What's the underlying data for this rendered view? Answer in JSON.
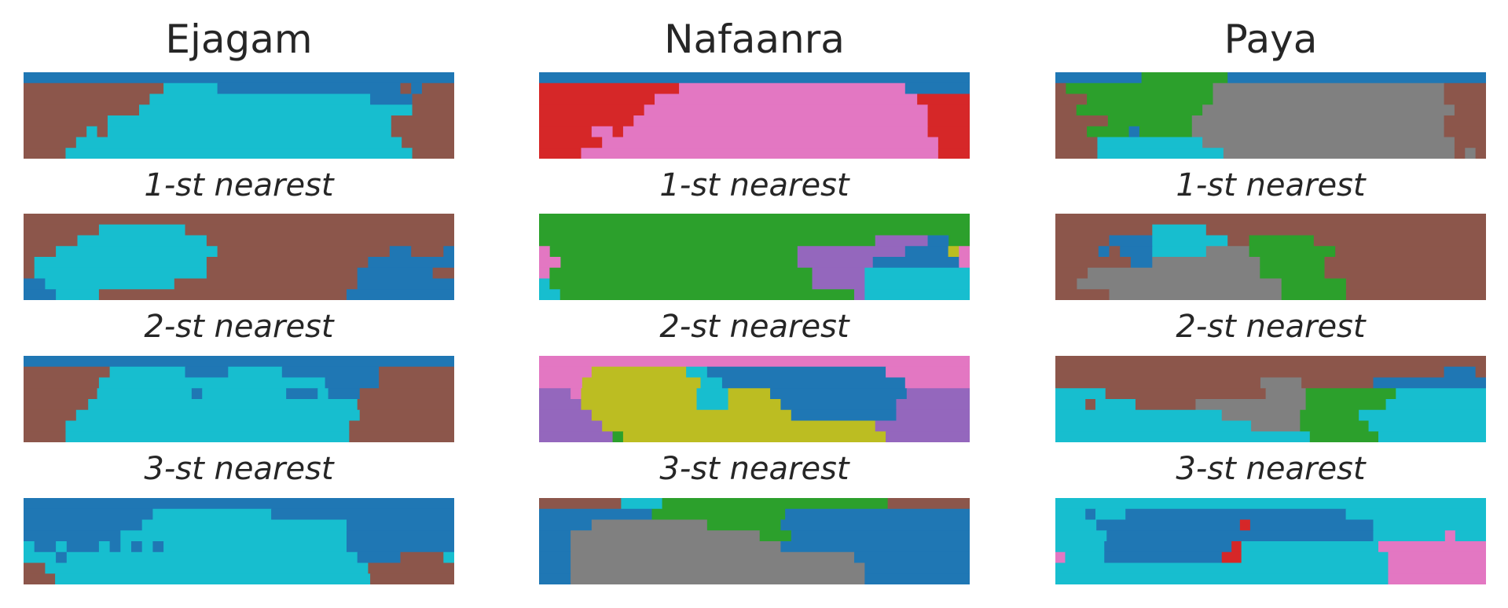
{
  "palette": {
    "b": "#1f77b4",
    "n": "#8c564b",
    "c": "#17becf",
    "r": "#d62728",
    "p": "#e377c2",
    "g": "#2ca02c",
    "y": "#808080",
    "v": "#9467bd",
    "o": "#bcbd22"
  },
  "panels": [
    {
      "title": "Ejagam",
      "labels": [
        "1-st nearest",
        "2-st nearest",
        "3-st nearest"
      ],
      "maps": [
        [
          "bbbbbbbbbbbbbbbbbbbbbbbbbbbbbbbbbbbbbbbb",
          "nnnnnnnnnnnnncccccbbbbbbbbbbbbbbbbbnbnnn",
          "nnnnnnnnnnnncccccccccccccccccccccbbbbnnnn",
          "nnnnnnnnnnnccccccccccccccccccccccccccnnnn",
          "nnnnnnnncccccccccccccccccccccccccccnnnnnn",
          "nnnnnncncccccccccccccccccccccccccccnnnnnn",
          "nnnnncccccccccccccccccccccccccccccccnnnnn",
          "nnnncccccccccccccccccccccccccccccccccnnnn"
        ],
        [
          "nnnnnnnnnnnnnnnnnnnnnnnnnnnnnnnnnnnnnnnn",
          "nnnnnnnccccccccnnnnnnnnnnnnnnnnnnnnnnnnn",
          "nnnnnccccccccccccnnnnnnnnnnnnnnnnnnnnnnn",
          "nnncccccccccccccccnnnnnnnnnnnnnnnnbbnnnb",
          "nccccccccccccccccnnnnnnnnnnnnnnnbbbbbbbb",
          "nccccccccccccccccnnnnnnnnnnnnnnbbbbbbbnn",
          "bbccccccccccccnnnnnnnnnnnnnnnnnbbbbbbbbb",
          "bbbccccnnnnnnnnnnnnnnnnnnnnnnnbbbbbbbbbb"
        ],
        [
          "bbbbbbbbbbbbbbbbbbbbbbbbbbbbbbbbbbbbbbbb",
          "nnnnnnnncccccccbbbbcccccbbbbbbbbbnnnnnnn",
          "nnnnnnncccccccccccccccccccccbbbbbnnnnnnn",
          "nnnnnnncccccccccbccccccccbbbcbbbnnnnnnnnn",
          "nnnnnncccccccccccccccccccccccccnnnnnnnnn",
          "nnnnncccccccccccccccccccccccccccnnnnnnnnn",
          "nnnncccccccccccccccccccccccccccnnnnnnnnnn",
          "nnnncccccccccccccccccccccccccccnnnnnnnnnn"
        ],
        [
          "bbbbbbbbbbbbbbbbbbbbbbbbbbbbbbbbbbbbbbbb",
          "bbbbbbbbbbbbcccccccccccbbbbbbbbbbbbbbbbb",
          "bbbbbbbbbbbcccccccccccccccccccbbbbbbbbbb",
          "bbbbbbbbbcccccccccccccccccccccbbbbbbbbbb",
          "cbbcbbbcbcbcbcccccccccccccccccbbbbbbbbbb",
          "cccbcccccccccccccccccccccccccccbbbbnnnnc",
          "nnccccccccccccccccccccccccccccccnnnnnnnn",
          "nnnccccccccccccccccccccccccccccccnnnnnnnn"
        ]
      ]
    },
    {
      "title": "Nafaanra",
      "labels": [
        "1-st nearest",
        "2-st nearest",
        "3-st nearest"
      ],
      "maps": [
        [
          "bbbbbbbbbbbbbbbbbbbbbbbbbbbbbbbbbbbbbbbb",
          "rrrrrrrrrrrrrpppppppppppppppppppppbbbbbb",
          "rrrrrrrrrrrppppppppppppppppppppppppprrrrr",
          "rrrrrrrrrrppppppppppppppppppppppppppprrrr",
          "rrrrrrrrrpppppppppppppppppppppppppppprrrr",
          "rrrrrpprppppppppppppppppppppppppppppprrrr",
          "rrrrrrpppppppppppppppppppppppppppppppprrr",
          "rrrrpppppppppppppppppppppppppppppppppprrr"
        ],
        [
          "gggggggggggggggggggggggggggggggggggggggg",
          "ggggggggggggggggggggggggggggggggggggggggg",
          "ggggggggggggggggggggggggggggggggvvvvvbbgg",
          "pgggggggggggggggggggggggvvvvvvvvvvbbbbop",
          "ppggggggggggggggggggggggvvvvvvvbbbbbbbbp",
          "pgggggggggggggggggggggggggvvvvvcccccccccc",
          "cgggggggggggggggggggggggggvvvvvcccccccccc",
          "ccggggggggggggggggggggggggggggvcccccccccc"
        ],
        [
          "pppppppppppppppppppppppppppppppppppppppp",
          "pppppoooooooooccbbbbbbbbbbbbbbbbbpppppppp",
          "ppppoooooooooooccbbbbbbbbbbbbbbbbbpppppp",
          "vvvpooooooooooocccoooobbbbbbbbbbbbbvvvvvv",
          "vvvvooooooooooocccooooobbbbbbbbbbbvvvvvvv",
          "vvvvvooooooooooooooooooobbbbbbbbbbvvvvvvv",
          "vvvvvvoooooooooooooooooooooooooovvvvvvvvv",
          "vvvvvvvgooooooooooooooooooooooooovvvvvvvv"
        ],
        [
          "nnnnnnnnccccggggggggggggggggggggggnnnnnnnn",
          "bbbbbbbbbbbgggggggggggggbbbbbbbbbbbbbbbbbb",
          "bbbbbyyyyyyyyyyygggggggbbbbbbbbbbbbbbbbbb",
          "bbbyyyyyyyyyyyyyyyyyygggbbbbbbbbbbbbbbbbb",
          "bbbyyyyyyyyyyyyyyyyyyyybbbbbbbbbbbbbbbbbb",
          "bbbyyyyyyyyyyyyyyyyyyyyyyyyyyybbbbbbbbbbb",
          "bbbyyyyyyyyyyyyyyyyyyyyyyyyyyyybbbbbbbbbb",
          "bbbyyyyyyyyyyyyyyyyyyyyyyyyyyyybbbbbbbbbb"
        ]
      ]
    },
    {
      "title": "Paya",
      "labels": [
        "1-st nearest",
        "2-st nearest",
        "3-st nearest"
      ],
      "maps": [
        [
          "bbbbbbbbggggggggbbbbbbbbbbbbbbbbbbbbbbbb",
          "nggggggggggggggyyyyyyyyyyyyyyyyyyyyyynnnn",
          "nnnggggggggggggyyyyyyyyyyyyyyyyyyyyyynnnn",
          "nnggggggggggggyyyyyyyyyyyyyyyyyyyyyyyynnn",
          "nnnnnggggggggyyyyyyyyyyyyyyyyyyyyyyyynnnn",
          "nnnggggbgggggyyyyyyyyyyyyyyyyyyyyyyyynnnn",
          "nnnnccccccccccyyyyyyyyyyyyyyyyyyyyyyyynnn",
          "nnnnccccccccccccyyyyyyyyyyyyyyyyyyyyyynyn"
        ],
        [
          "nnnnnnnnnnnnnnnnnnnnnnnnnnnnnnnnnnnnnnnn",
          "nnnnnnnnncccccnnnnnnnnnnnnnnnnnnnnnnnnnn",
          "nnnnnbbbbcccccccnnggggggnnnnnnnnnnnnnnnn",
          "nnnnbnbbbcccccyyyyggggggggnnnnnnnnnnnnnn",
          "nnnnnnnbbyyyyyyyyyyggggggnnnnnnnnnnnnnnn",
          "nnnyyyyyyyyyyyyyyyyggggggnnnnnnnnnnnnnnn",
          "nnyyyyyyyyyyyyyyyyyyyggggggnnnnnnnnnnnnn",
          "nnnnnyyyyyyyyyyyyyyyyggggggnnnnnnnnnnnnn"
        ],
        [
          "nnnnnnnnnnnnnnnnnnnnnnnnnnnnnnnnnnnnnnnn",
          "nnnnnnnnnnnnnnnnnnnnnnnnnnnnnnnnnnnnnbbbn",
          "nnnnnnnnnnnnnnnnnnnnyyyynnnnnnnbbbbbbbbbbb",
          "cccccnnnnnnnnnnnnnnnnyyyygggggggggccccccccc",
          "cccnccccnnnnnnyyyyyyyyyyyggggggggcccccccccc",
          "cccccccccccccccccyyyyyyyyggggggccccccccccccc",
          "ccccccccccccccccccccyyyyygggggggcccccccccccc",
          "ccccccccccccccccccccccccccgggggggccccccccccc"
        ],
        [
          "cccccccccccccccccccccccccccccccccccccccccc",
          "cccbcccbbbbbbbbbbbbbbbbbbbbbbcccccccccccccc",
          "ccccbbbbbbbbbbbbbbrbbbbbbbbbbbbccccccccccc",
          "cccccbbbbbbbbbbbbbbbbbbbbbbbbbbcccccccpccc",
          "cccccbbbbbbbbbbbbbrccccccccccccccppppppppppp",
          "pccccbbbbbbbbbbbbrrcccccccccccccccpppppppppp",
          "ccccccccccccccccccccccccccccccccccpppppppppp",
          "ccccccccccccccccccccccccccccccccccpppppppppp"
        ]
      ]
    }
  ]
}
